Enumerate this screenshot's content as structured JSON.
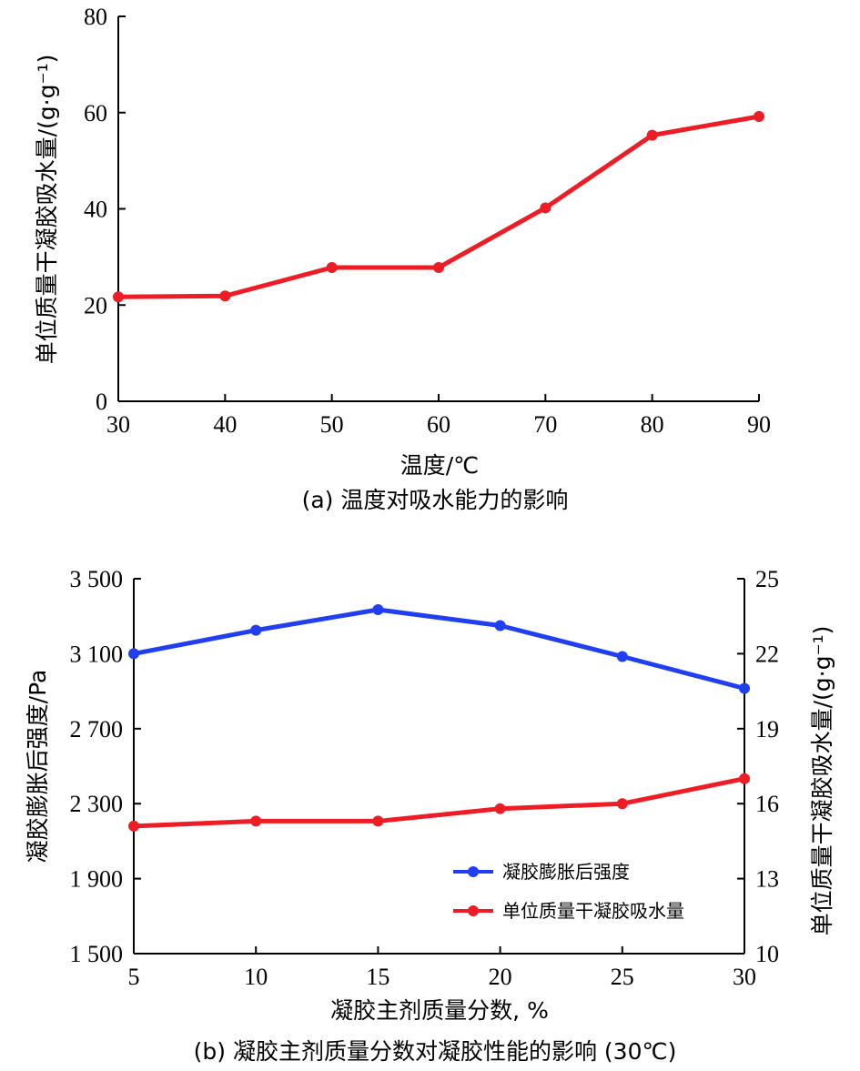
{
  "chart_data": [
    {
      "type": "line",
      "title": "",
      "caption": "(a) 温度对吸水能力的影响",
      "xlabel": "温度/℃",
      "ylabel": "单位质量干凝胶吸水量/(g·g⁻¹)",
      "xlim": [
        30,
        90
      ],
      "ylim": [
        0,
        80
      ],
      "xticks": [
        30,
        40,
        50,
        60,
        70,
        80,
        90
      ],
      "yticks": [
        0,
        20,
        40,
        60,
        80
      ],
      "x": [
        30,
        40,
        50,
        60,
        70,
        80,
        90
      ],
      "series": [
        {
          "name": "单位质量干凝胶吸水量",
          "color": "#ee1c25",
          "values": [
            21.7,
            21.9,
            27.8,
            27.8,
            40.2,
            55.3,
            59.2
          ]
        }
      ]
    },
    {
      "type": "line",
      "title": "",
      "caption": "(b) 凝胶主剂质量分数对凝胶性能的影响 (30℃)",
      "xlabel": "凝胶主剂质量分数, %",
      "ylabel": "凝胶膨胀后强度/Pa",
      "ylabel_right": "单位质量干凝胶吸水量/(g·g⁻¹)",
      "xlim": [
        5,
        30
      ],
      "ylim": [
        1500,
        3500
      ],
      "ylim_right": [
        10,
        25
      ],
      "xticks": [
        5,
        10,
        15,
        20,
        25,
        30
      ],
      "yticks": [
        1500,
        1900,
        2300,
        2700,
        3100,
        3500
      ],
      "yticks_right": [
        10,
        13,
        16,
        19,
        22,
        25
      ],
      "ytick_labels": [
        "1 500",
        "1 900",
        "2 300",
        "2 700",
        "3 100",
        "3 500"
      ],
      "x": [
        5,
        10,
        15,
        20,
        25,
        30
      ],
      "legend_position": "center-right",
      "series": [
        {
          "name": "凝胶膨胀后强度",
          "axis": "left",
          "color": "#1f3ff0",
          "values": [
            3100,
            3225,
            3335,
            3250,
            3085,
            2915
          ]
        },
        {
          "name": "单位质量干凝胶吸水量",
          "axis": "right",
          "color": "#ee1c25",
          "values": [
            15.1,
            15.3,
            15.3,
            15.8,
            16.0,
            17.0
          ]
        }
      ]
    }
  ]
}
